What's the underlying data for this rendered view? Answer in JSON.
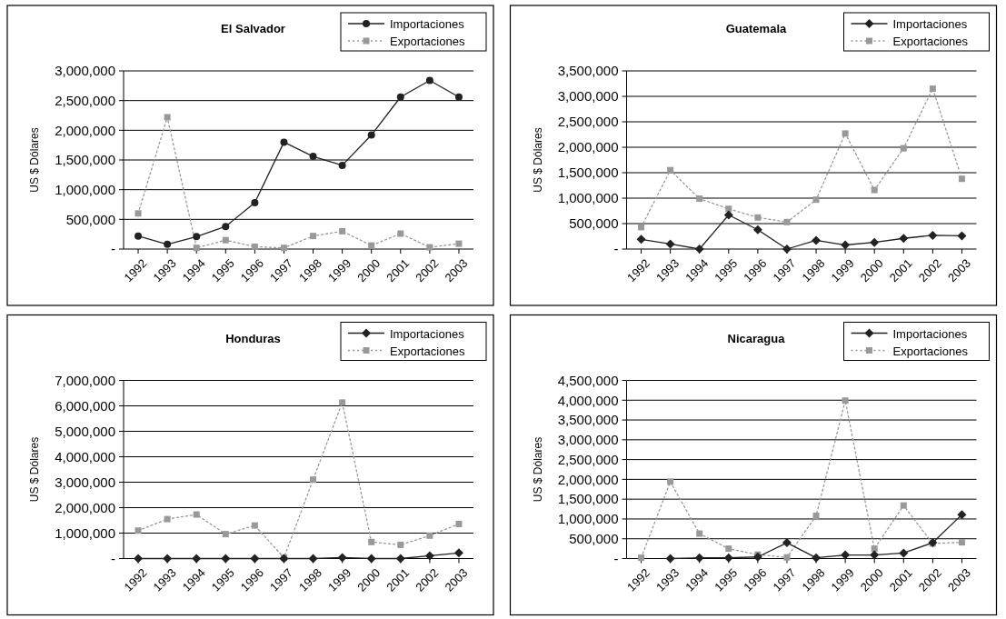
{
  "chart_data": [
    {
      "type": "line",
      "title": "El Salvador",
      "ylabel": "US $ Dólares",
      "categories": [
        "1992",
        "1993",
        "1994",
        "1995",
        "1996",
        "1997",
        "1998",
        "1999",
        "2000",
        "2001",
        "2002",
        "2003"
      ],
      "ylim": [
        0,
        3000000
      ],
      "yticks": [
        {
          "value": 0,
          "label": "-"
        },
        {
          "value": 500000,
          "label": "500,000"
        },
        {
          "value": 1000000,
          "label": "1,000,000"
        },
        {
          "value": 1500000,
          "label": "1,500,000"
        },
        {
          "value": 2000000,
          "label": "2,000,000"
        },
        {
          "value": 2500000,
          "label": "2,500,000"
        },
        {
          "value": 3000000,
          "label": "3,000,000"
        }
      ],
      "grid": "y",
      "legend": "top right",
      "series": [
        {
          "name": "Importaciones",
          "color": "#222222",
          "marker": "circle",
          "line_style": "solid",
          "values": [
            220000,
            80000,
            210000,
            380000,
            780000,
            1800000,
            1560000,
            1410000,
            1920000,
            2560000,
            2840000,
            2560000
          ]
        },
        {
          "name": "Exportaciones",
          "color": "#999999",
          "marker": "square",
          "line_style": "dotted",
          "values": [
            600000,
            2220000,
            20000,
            150000,
            40000,
            20000,
            220000,
            300000,
            60000,
            260000,
            30000,
            90000
          ]
        }
      ]
    },
    {
      "type": "line",
      "title": "Guatemala",
      "ylabel": "US $ Dólares",
      "categories": [
        "1992",
        "1993",
        "1994",
        "1995",
        "1996",
        "1997",
        "1998",
        "1999",
        "2000",
        "2001",
        "2002",
        "2003"
      ],
      "ylim": [
        0,
        3500000
      ],
      "yticks": [
        {
          "value": 0,
          "label": "-"
        },
        {
          "value": 500000,
          "label": "500,000"
        },
        {
          "value": 1000000,
          "label": "1,000,000"
        },
        {
          "value": 1500000,
          "label": "1,500,000"
        },
        {
          "value": 2000000,
          "label": "2,000,000"
        },
        {
          "value": 2500000,
          "label": "2,500,000"
        },
        {
          "value": 3000000,
          "label": "3,000,000"
        },
        {
          "value": 3500000,
          "label": "3,500,000"
        }
      ],
      "grid": "y",
      "legend": "top right",
      "series": [
        {
          "name": "Importaciones",
          "color": "#222222",
          "marker": "diamond",
          "line_style": "solid",
          "values": [
            190000,
            100000,
            0,
            670000,
            380000,
            0,
            170000,
            80000,
            130000,
            210000,
            270000,
            260000
          ]
        },
        {
          "name": "Exportaciones",
          "color": "#999999",
          "marker": "square",
          "line_style": "dotted",
          "values": [
            430000,
            1550000,
            990000,
            790000,
            620000,
            530000,
            970000,
            2270000,
            1160000,
            1980000,
            3150000,
            1380000
          ]
        }
      ]
    },
    {
      "type": "line",
      "title": "Honduras",
      "ylabel": "US $ Dólares",
      "categories": [
        "1992",
        "1993",
        "1994",
        "1995",
        "1996",
        "1997",
        "1998",
        "1999",
        "2000",
        "2001",
        "2002",
        "2003"
      ],
      "ylim": [
        0,
        7000000
      ],
      "yticks": [
        {
          "value": 0,
          "label": "-"
        },
        {
          "value": 1000000,
          "label": "1,000,000"
        },
        {
          "value": 2000000,
          "label": "2,000,000"
        },
        {
          "value": 3000000,
          "label": "3,000,000"
        },
        {
          "value": 4000000,
          "label": "4,000,000"
        },
        {
          "value": 5000000,
          "label": "5,000,000"
        },
        {
          "value": 6000000,
          "label": "6,000,000"
        },
        {
          "value": 7000000,
          "label": "7,000,000"
        }
      ],
      "grid": "y",
      "legend": "top right",
      "series": [
        {
          "name": "Importaciones",
          "color": "#222222",
          "marker": "diamond",
          "line_style": "solid",
          "values": [
            0,
            0,
            0,
            0,
            0,
            0,
            0,
            40000,
            0,
            0,
            110000,
            220000
          ]
        },
        {
          "name": "Exportaciones",
          "color": "#999999",
          "marker": "square",
          "line_style": "dotted",
          "values": [
            1100000,
            1550000,
            1730000,
            960000,
            1300000,
            30000,
            3100000,
            6130000,
            650000,
            540000,
            900000,
            1360000
          ]
        }
      ]
    },
    {
      "type": "line",
      "title": "Nicaragua",
      "ylabel": "US $ Dólares",
      "categories": [
        "1992",
        "1993",
        "1994",
        "1995",
        "1996",
        "1997",
        "1998",
        "1999",
        "2000",
        "2001",
        "2002",
        "2003"
      ],
      "ylim": [
        0,
        4500000
      ],
      "yticks": [
        {
          "value": 0,
          "label": "-"
        },
        {
          "value": 500000,
          "label": "500,000"
        },
        {
          "value": 1000000,
          "label": "1,000,000"
        },
        {
          "value": 1500000,
          "label": "1,500,000"
        },
        {
          "value": 2000000,
          "label": "2,000,000"
        },
        {
          "value": 2500000,
          "label": "2,500,000"
        },
        {
          "value": 3000000,
          "label": "3,000,000"
        },
        {
          "value": 3500000,
          "label": "3,500,000"
        },
        {
          "value": 4000000,
          "label": "4,000,000"
        },
        {
          "value": 4500000,
          "label": "4,500,000"
        }
      ],
      "grid": "y",
      "legend": "top right",
      "series": [
        {
          "name": "Importaciones",
          "color": "#222222",
          "marker": "diamond",
          "line_style": "solid",
          "values": [
            null,
            0,
            20000,
            20000,
            40000,
            400000,
            20000,
            90000,
            90000,
            140000,
            400000,
            1110000
          ]
        },
        {
          "name": "Exportaciones",
          "color": "#999999",
          "marker": "square",
          "line_style": "dotted",
          "values": [
            20000,
            1940000,
            630000,
            250000,
            100000,
            30000,
            1080000,
            3990000,
            250000,
            1340000,
            380000,
            410000
          ]
        }
      ]
    }
  ]
}
